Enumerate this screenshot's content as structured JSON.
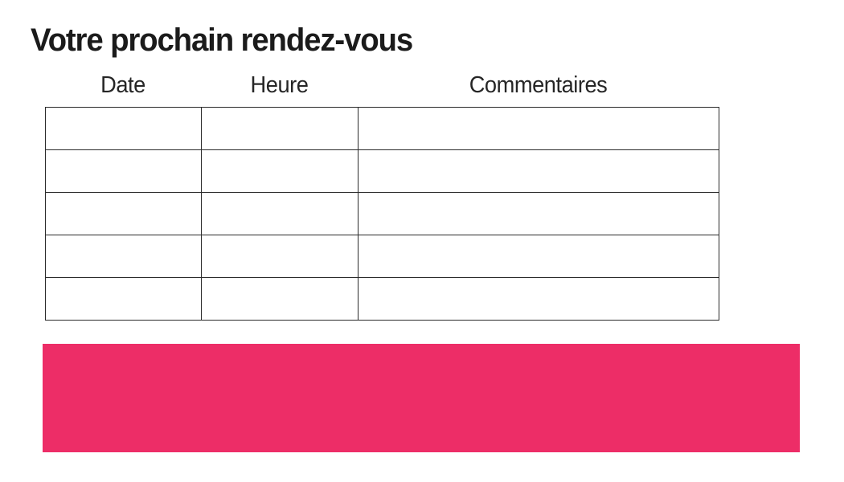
{
  "page": {
    "title": "Votre prochain rendez-vous"
  },
  "table": {
    "columns": [
      "Date",
      "Heure",
      "Commentaires"
    ],
    "rows": [
      [
        "",
        "",
        ""
      ],
      [
        "",
        "",
        ""
      ],
      [
        "",
        "",
        ""
      ],
      [
        "",
        "",
        ""
      ],
      [
        "",
        "",
        ""
      ]
    ]
  },
  "banner": {
    "color": "#ED2D67"
  },
  "colors": {
    "text": "#1b1b1b",
    "header_text": "#262626",
    "table_border": "#2a2a2a",
    "accent_pink": "#ED2D67",
    "background": "#ffffff"
  }
}
